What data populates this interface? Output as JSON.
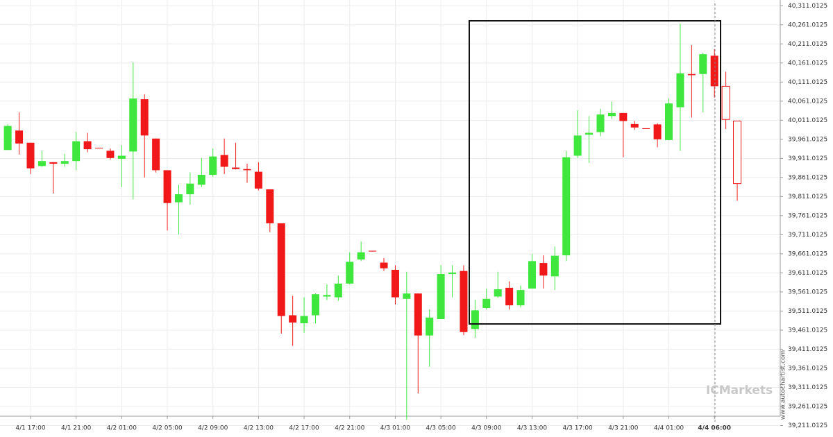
{
  "chart_data": {
    "type": "candlestick",
    "categories": [
      null,
      null,
      "4/1 17:00",
      null,
      null,
      null,
      "4/1 21:00",
      null,
      null,
      null,
      "4/2 01:00",
      null,
      null,
      null,
      "4/2 05:00",
      null,
      null,
      null,
      "4/2 09:00",
      null,
      null,
      null,
      "4/2 13:00",
      null,
      null,
      null,
      "4/2 17:00",
      null,
      null,
      null,
      "4/2 21:00",
      null,
      null,
      null,
      "4/3 01:00",
      null,
      null,
      null,
      "4/3 05:00",
      null,
      null,
      null,
      "4/3 09:00",
      null,
      null,
      null,
      "4/3 13:00",
      null,
      null,
      null,
      "4/3 17:00",
      null,
      null,
      null,
      "4/3 21:00",
      null,
      null,
      null,
      "4/4 01:00",
      null,
      null,
      null,
      "4/4 06:00",
      null,
      null
    ],
    "open": [
      39933,
      39984,
      39952,
      39891,
      39901,
      39897,
      39904,
      39956,
      39939,
      39931,
      39910,
      39929,
      40066,
      39963,
      39880,
      39796,
      39817,
      39842,
      39868,
      39920,
      39887,
      39883,
      39876,
      39830,
      39741,
      39500,
      39479,
      39500,
      39549,
      39547,
      39583,
      39646,
      39669,
      39638,
      39619,
      39543,
      39557,
      39447,
      39490,
      39608,
      39616,
      39464,
      39519,
      39549,
      39572,
      39526,
      39570,
      39637,
      39602,
      39657,
      39918,
      39973,
      39980,
      40022,
      40030,
      40001,
      39990,
      40000,
      39959,
      40045,
      40132,
      40132,
      40180,
      40100,
      40009
    ],
    "high": [
      40000,
      40032,
      39952,
      39931,
      39901,
      39923,
      39980,
      39978,
      39939,
      39937,
      39946,
      40163,
      40079,
      39963,
      39880,
      39842,
      39874,
      39912,
      39937,
      39963,
      39952,
      39897,
      39901,
      39830,
      39741,
      39551,
      39547,
      39557,
      39581,
      39604,
      39665,
      39693,
      39669,
      39650,
      39631,
      39614,
      39557,
      39515,
      39631,
      39631,
      39631,
      39541,
      39570,
      39614,
      39589,
      39578,
      39661,
      39657,
      39680,
      39931,
      40037,
      40022,
      40041,
      40060,
      40030,
      40009,
      39990,
      40003,
      40068,
      40264,
      40208,
      40188,
      40197,
      40138,
      40009
    ],
    "low": [
      39933,
      39921,
      39870,
      39889,
      39819,
      39889,
      39880,
      39927,
      39937,
      39908,
      39836,
      39804,
      39861,
      39874,
      39722,
      39712,
      39790,
      39836,
      39863,
      39870,
      39882,
      39847,
      39827,
      39718,
      39452,
      39420,
      39454,
      39479,
      39540,
      39538,
      39581,
      39642,
      39667,
      39616,
      39528,
      39226,
      39295,
      39365,
      39490,
      39547,
      39448,
      39441,
      39515,
      39545,
      39515,
      39521,
      39570,
      39570,
      39566,
      39642,
      39912,
      39899,
      39969,
      40015,
      39914,
      39986,
      39988,
      39940,
      39958,
      39931,
      40018,
      40032,
      40070,
      39988,
      39800
    ],
    "close": [
      39996,
      39950,
      39885,
      39904,
      39897,
      39904,
      39956,
      39935,
      39937,
      39912,
      39918,
      40068,
      39971,
      39880,
      39794,
      39817,
      39845,
      39868,
      39916,
      39889,
      39883,
      39880,
      39832,
      39741,
      39498,
      39481,
      39498,
      39555,
      39553,
      39583,
      39640,
      39665,
      39667,
      39623,
      39547,
      39557,
      39447,
      39494,
      39608,
      39612,
      39456,
      39513,
      39543,
      39568,
      39526,
      39566,
      39642,
      39604,
      39656,
      39914,
      39971,
      39978,
      40026,
      40030,
      40009,
      39992,
      39988,
      39961,
      40055,
      40134,
      40129,
      40184,
      40100,
      40013,
      39845
    ],
    "up_color": "#3ee63e",
    "down_color": "#f01818",
    "ylim": [
      39181.0125,
      40326.0125
    ],
    "yticks": [
      {
        "value": 40311.0125,
        "label": "40,311.0125"
      },
      {
        "value": 40261.0125,
        "label": "40,261.0125"
      },
      {
        "value": 40211.0125,
        "label": "40,211.0125"
      },
      {
        "value": 40161.0125,
        "label": "40,161.0125"
      },
      {
        "value": 40111.0125,
        "label": "40,111.0125"
      },
      {
        "value": 40061.0125,
        "label": "40,061.0125"
      },
      {
        "value": 40011.0125,
        "label": "40,011.0125"
      },
      {
        "value": 39961.0125,
        "label": "39,961.0125"
      },
      {
        "value": 39911.0125,
        "label": "39,911.0125"
      },
      {
        "value": 39861.0125,
        "label": "39,861.0125"
      },
      {
        "value": 39811.0125,
        "label": "39,811.0125"
      },
      {
        "value": 39761.0125,
        "label": "39,761.0125"
      },
      {
        "value": 39711.0125,
        "label": "39,711.0125"
      },
      {
        "value": 39661.0125,
        "label": "39,661.0125"
      },
      {
        "value": 39611.0125,
        "label": "39,611.0125"
      },
      {
        "value": 39561.0125,
        "label": "39,561.0125"
      },
      {
        "value": 39511.0125,
        "label": "39,511.0125"
      },
      {
        "value": 39461.0125,
        "label": "39,461.0125"
      },
      {
        "value": 39411.0125,
        "label": "39,411.0125"
      },
      {
        "value": 39361.0125,
        "label": "39,361.0125"
      },
      {
        "value": 39311.0125,
        "label": "39,311.0125"
      },
      {
        "value": 39261.0125,
        "label": "39,261.0125"
      },
      {
        "value": 39211.0125,
        "label": "39,211.0125"
      }
    ],
    "grid": true,
    "watermark": "www.autochartist.com",
    "logo": "ICMarkets"
  }
}
